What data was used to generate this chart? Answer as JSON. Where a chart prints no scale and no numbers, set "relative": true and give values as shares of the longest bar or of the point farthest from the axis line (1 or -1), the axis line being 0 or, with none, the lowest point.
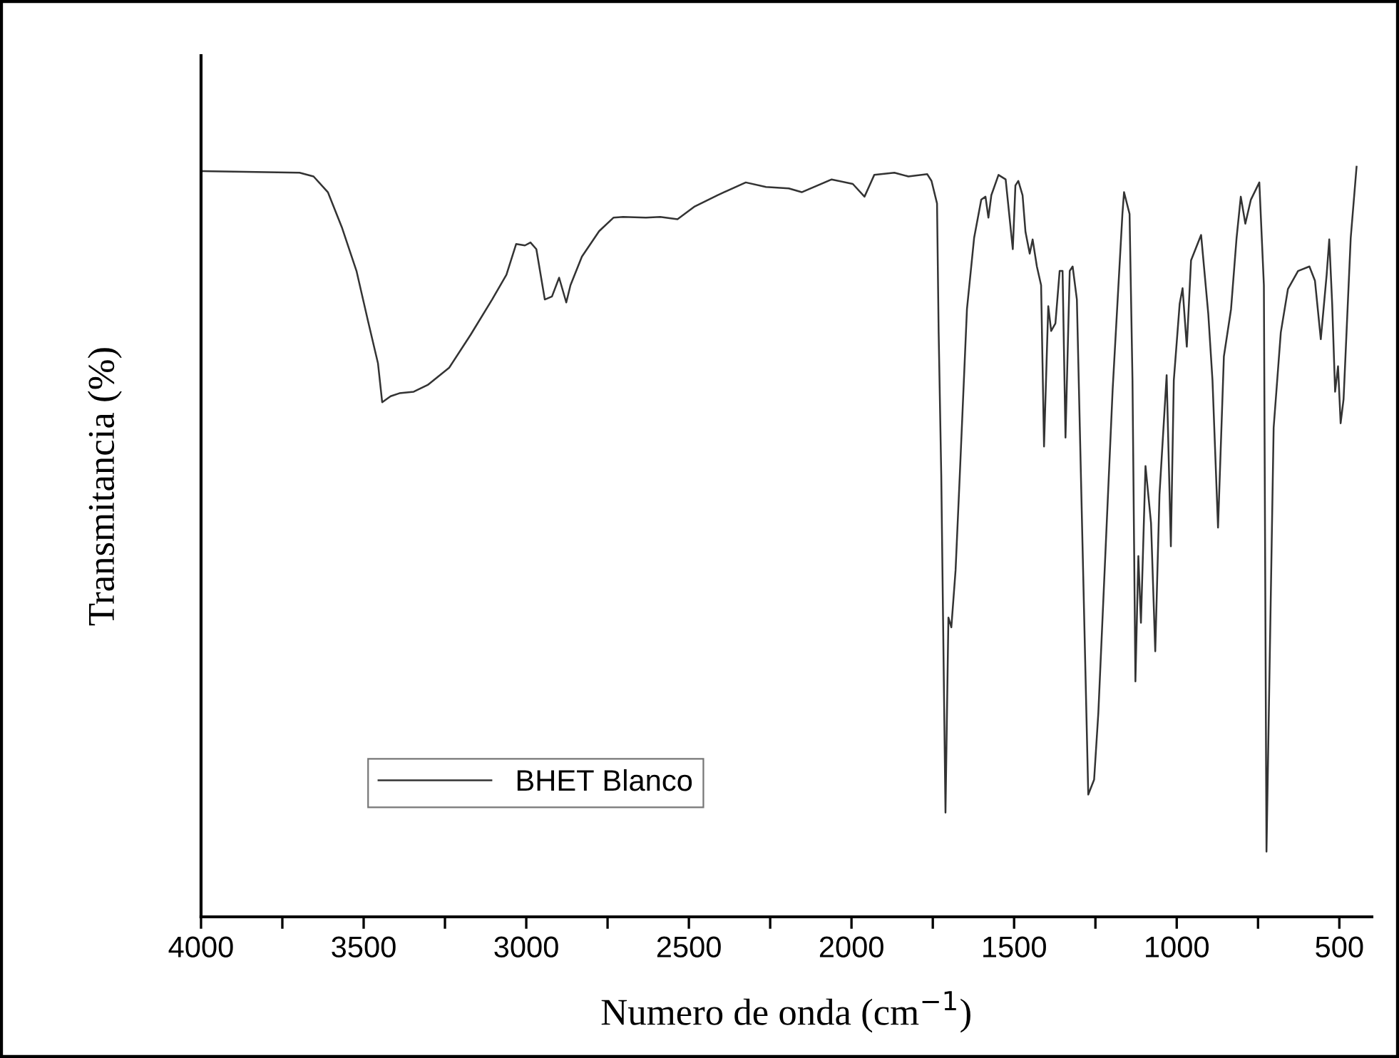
{
  "chart_data": {
    "type": "line",
    "relative": true,
    "xlabel": "Numero de onda (cm$^{−1}$)",
    "ylabel": "Transmitancia (%)",
    "xlim": [
      4000,
      400
    ],
    "xticks": [
      4000,
      {
        "value": 3750,
        "label": null
      },
      3500,
      {
        "value": 3250,
        "label": null
      },
      3000,
      {
        "value": 2750,
        "label": null
      },
      2500,
      {
        "value": 2250,
        "label": null
      },
      2000,
      {
        "value": 1750,
        "label": null
      },
      1500,
      {
        "value": 1250,
        "label": null
      },
      1000,
      {
        "value": 750,
        "label": null
      },
      500
    ],
    "tick_labels": "x",
    "legend": "bottom left",
    "grid": false,
    "marker": "none",
    "line_style": "solid",
    "series": [
      {
        "name": "BHET Blanco",
        "color": "#333333",
        "x": [
          3996,
          3697,
          3654,
          3610,
          3566,
          3522,
          3487,
          3456,
          3443,
          3417,
          3390,
          3346,
          3303,
          3237,
          3171,
          3105,
          3061,
          3031,
          3004,
          2987,
          2969,
          2943,
          2921,
          2899,
          2877,
          2864,
          2829,
          2776,
          2732,
          2702,
          2632,
          2588,
          2535,
          2482,
          2412,
          2325,
          2263,
          2193,
          2153,
          2061,
          1996,
          1960,
          1930,
          1868,
          1825,
          1767,
          1754,
          1737,
          1732,
          1724,
          1711,
          1702,
          1693,
          1680,
          1667,
          1645,
          1623,
          1601,
          1588,
          1579,
          1570,
          1548,
          1526,
          1504,
          1496,
          1487,
          1474,
          1465,
          1452,
          1443,
          1430,
          1417,
          1408,
          1395,
          1386,
          1373,
          1360,
          1351,
          1342,
          1329,
          1320,
          1307,
          1272,
          1254,
          1241,
          1197,
          1167,
          1162,
          1145,
          1136,
          1127,
          1118,
          1110,
          1096,
          1079,
          1066,
          1053,
          1031,
          1018,
          1009,
          991,
          982,
          969,
          956,
          925,
          903,
          890,
          873,
          855,
          833,
          816,
          803,
          789,
          772,
          746,
          732,
          724,
          702,
          680,
          658,
          627,
          592,
          575,
          557,
          539,
          531,
          522,
          513,
          504,
          496,
          487,
          465,
          447
        ],
        "values": [
          0.994,
          0.992,
          0.987,
          0.966,
          0.918,
          0.861,
          0.795,
          0.738,
          0.686,
          0.694,
          0.698,
          0.7,
          0.709,
          0.732,
          0.776,
          0.823,
          0.856,
          0.897,
          0.895,
          0.899,
          0.89,
          0.823,
          0.827,
          0.852,
          0.819,
          0.842,
          0.88,
          0.914,
          0.932,
          0.933,
          0.932,
          0.933,
          0.93,
          0.947,
          0.962,
          0.979,
          0.973,
          0.971,
          0.966,
          0.983,
          0.977,
          0.96,
          0.989,
          0.992,
          0.987,
          0.99,
          0.981,
          0.951,
          0.779,
          0.589,
          0.139,
          0.399,
          0.386,
          0.462,
          0.589,
          0.81,
          0.905,
          0.956,
          0.96,
          0.932,
          0.962,
          0.989,
          0.983,
          0.89,
          0.975,
          0.981,
          0.962,
          0.913,
          0.884,
          0.903,
          0.867,
          0.842,
          0.627,
          0.814,
          0.781,
          0.791,
          0.861,
          0.861,
          0.639,
          0.861,
          0.867,
          0.823,
          0.163,
          0.183,
          0.272,
          0.703,
          0.937,
          0.966,
          0.937,
          0.715,
          0.314,
          0.481,
          0.392,
          0.601,
          0.525,
          0.354,
          0.563,
          0.722,
          0.494,
          0.715,
          0.817,
          0.838,
          0.76,
          0.875,
          0.909,
          0.804,
          0.715,
          0.519,
          0.747,
          0.81,
          0.905,
          0.96,
          0.924,
          0.956,
          0.979,
          0.842,
          0.087,
          0.652,
          0.779,
          0.837,
          0.861,
          0.867,
          0.848,
          0.77,
          0.856,
          0.903,
          0.817,
          0.7,
          0.734,
          0.658,
          0.69,
          0.905,
          1.0
        ]
      }
    ]
  }
}
